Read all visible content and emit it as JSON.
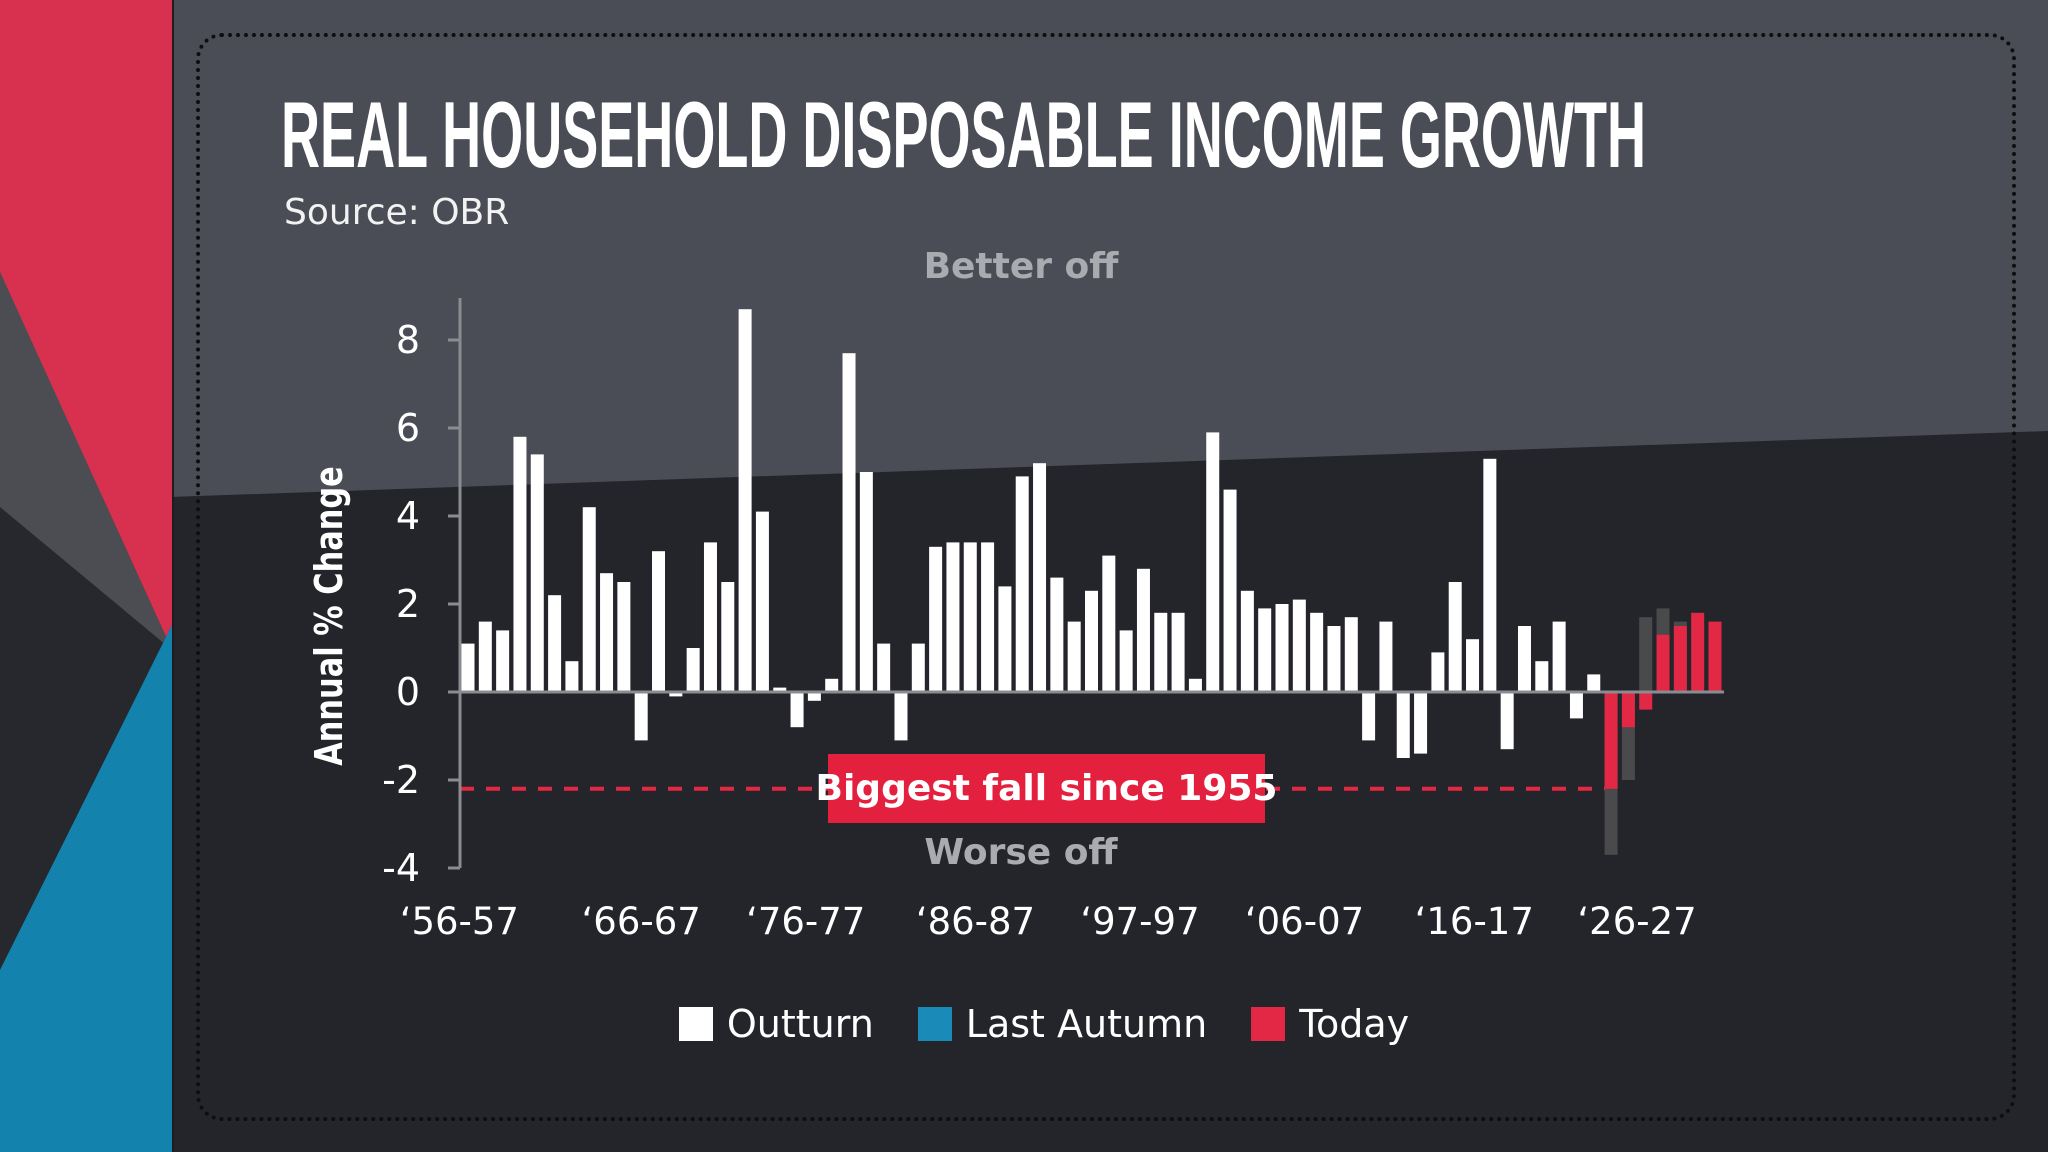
{
  "title": "REAL HOUSEHOLD DISPOSABLE INCOME GROWTH",
  "source": "Source: OBR",
  "colors": {
    "outturn": "#ffffff",
    "last_autumn": "#1a8bb8",
    "today": "#e32845",
    "last_autumn_bars_drawn": "#4a4a4c",
    "accent_left_red": "#d8304f",
    "accent_left_blue": "#1383ad"
  },
  "chart_data": {
    "type": "bar",
    "title": "REAL HOUSEHOLD DISPOSABLE INCOME GROWTH",
    "ylabel": "Annual % Change",
    "xlabel": "",
    "ylim": [
      -4,
      9
    ],
    "yticks": [
      "-4",
      "-2",
      "0",
      "2",
      "4",
      "6",
      "8"
    ],
    "xtick_labels": [
      "‘56-57",
      "‘66-67",
      "‘76-77",
      "‘86-87",
      "‘97-97",
      "‘06-07",
      "‘16-17",
      "‘26-27"
    ],
    "grid": false,
    "legend_position": "bottom",
    "series": [
      {
        "name": "Outturn",
        "values": [
          1.1,
          1.6,
          1.4,
          5.8,
          5.4,
          2.2,
          0.7,
          4.2,
          2.7,
          2.5,
          -1.1,
          3.2,
          -0.1,
          1.0,
          3.4,
          2.5,
          8.7,
          4.1,
          0.1,
          -0.8,
          -0.2,
          0.3,
          7.7,
          5.0,
          1.1,
          -1.1,
          1.1,
          3.3,
          3.4,
          3.4,
          3.4,
          2.4,
          4.9,
          5.2,
          2.6,
          1.6,
          2.3,
          3.1,
          1.4,
          2.8,
          1.8,
          1.8,
          0.3,
          5.9,
          4.6,
          2.3,
          1.9,
          2.0,
          2.1,
          1.8,
          1.5,
          1.7,
          -1.1,
          1.6,
          -1.5,
          -1.4,
          0.9,
          2.5,
          1.2,
          5.3,
          -1.3,
          1.5,
          0.7,
          1.6,
          -0.6,
          0.4,
          null,
          null,
          null,
          null,
          null,
          null,
          null
        ]
      },
      {
        "name": "Last Autumn",
        "values": [
          null,
          null,
          null,
          null,
          null,
          null,
          null,
          null,
          null,
          null,
          null,
          null,
          null,
          null,
          null,
          null,
          null,
          null,
          null,
          null,
          null,
          null,
          null,
          null,
          null,
          null,
          null,
          null,
          null,
          null,
          null,
          null,
          null,
          null,
          null,
          null,
          null,
          null,
          null,
          null,
          null,
          null,
          null,
          null,
          null,
          null,
          null,
          null,
          null,
          null,
          null,
          null,
          null,
          null,
          null,
          null,
          null,
          null,
          null,
          null,
          null,
          null,
          null,
          null,
          null,
          null,
          -3.7,
          -2.0,
          1.7,
          1.9,
          1.6,
          null,
          null
        ]
      },
      {
        "name": "Today",
        "values": [
          null,
          null,
          null,
          null,
          null,
          null,
          null,
          null,
          null,
          null,
          null,
          null,
          null,
          null,
          null,
          null,
          null,
          null,
          null,
          null,
          null,
          null,
          null,
          null,
          null,
          null,
          null,
          null,
          null,
          null,
          null,
          null,
          null,
          null,
          null,
          null,
          null,
          null,
          null,
          null,
          null,
          null,
          null,
          null,
          null,
          null,
          null,
          null,
          null,
          null,
          null,
          null,
          null,
          null,
          null,
          null,
          null,
          null,
          null,
          null,
          null,
          null,
          null,
          null,
          null,
          null,
          -2.2,
          -0.8,
          -0.4,
          1.3,
          1.5,
          1.8,
          1.6
        ]
      }
    ],
    "reference_line": {
      "value": -2.2,
      "style": "dashed",
      "label": "Biggest fall since 1955"
    },
    "annotations": {
      "top": "Better off",
      "bottom": "Worse off"
    }
  },
  "legend": [
    {
      "label": "Outturn",
      "color": "#ffffff"
    },
    {
      "label": "Last Autumn",
      "color": "#1a8bb8"
    },
    {
      "label": "Today",
      "color": "#e32845"
    }
  ]
}
